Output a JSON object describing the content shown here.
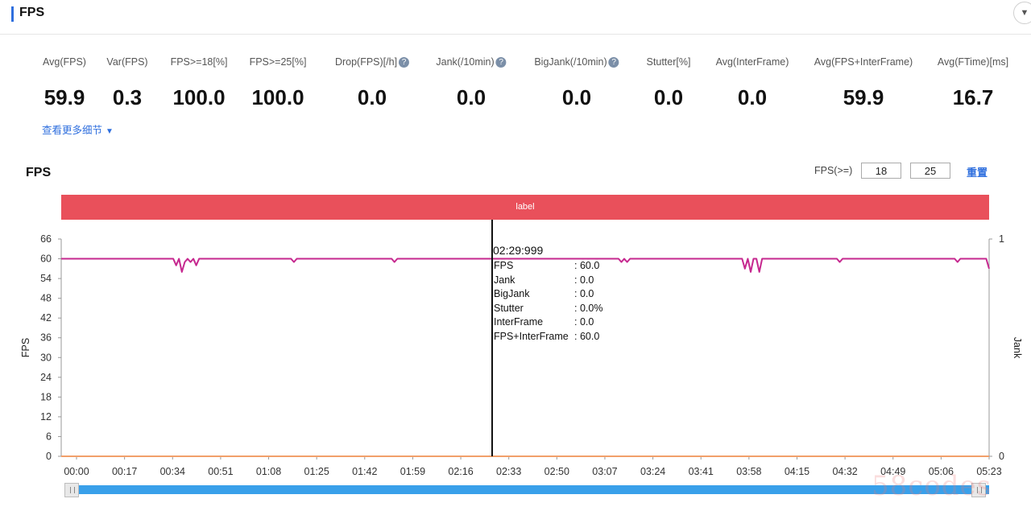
{
  "header": {
    "title": "FPS"
  },
  "summary": {
    "metrics": [
      {
        "label": "Avg(FPS)",
        "value": "59.9",
        "help": false
      },
      {
        "label": "Var(FPS)",
        "value": "0.3",
        "help": false
      },
      {
        "label": "FPS>=18[%]",
        "value": "100.0",
        "help": false
      },
      {
        "label": "FPS>=25[%]",
        "value": "100.0",
        "help": false
      },
      {
        "label": "Drop(FPS)[/h]",
        "value": "0.0",
        "help": true
      },
      {
        "label": "Jank(/10min)",
        "value": "0.0",
        "help": true
      },
      {
        "label": "BigJank(/10min)",
        "value": "0.0",
        "help": true
      },
      {
        "label": "Stutter[%]",
        "value": "0.0",
        "help": false
      },
      {
        "label": "Avg(InterFrame)",
        "value": "0.0",
        "help": false
      },
      {
        "label": "Avg(FPS+InterFrame)",
        "value": "59.9",
        "help": false
      },
      {
        "label": "Avg(FTime)[ms]",
        "value": "16.7",
        "help": false
      }
    ],
    "more_link": "查看更多细节",
    "help_icon": "question-circle-icon"
  },
  "chart_controls": {
    "title": "FPS",
    "threshold_label": "FPS(>=)",
    "threshold_1": "18",
    "threshold_2": "25",
    "reset_label": "重置"
  },
  "scene_band": {
    "label": "label",
    "color": "#e9505b"
  },
  "tooltip": {
    "time": "02:29:999",
    "rows": [
      {
        "name": "FPS",
        "value": ": 60.0"
      },
      {
        "name": "Jank",
        "value": ": 0.0"
      },
      {
        "name": "BigJank",
        "value": ": 0.0"
      },
      {
        "name": "Stutter",
        "value": ": 0.0%"
      },
      {
        "name": "InterFrame",
        "value": ": 0.0"
      },
      {
        "name": "FPS+InterFrame",
        "value": ": 60.0"
      }
    ]
  },
  "watermark": "58codes",
  "colors": {
    "fps_line": "#c6288f",
    "jank_line": "#f2a06a",
    "slider": "#39a0ea",
    "accent": "#2f6fde"
  },
  "chart_data": {
    "type": "line",
    "x_unit": "seconds",
    "xlim": [
      0,
      323
    ],
    "ylim": [
      0,
      66
    ],
    "y2lim": [
      0,
      1
    ],
    "ylabel": "FPS",
    "y2label": "Jank",
    "x_tick_labels": [
      "00:00",
      "00:17",
      "00:34",
      "00:51",
      "01:08",
      "01:25",
      "01:42",
      "01:59",
      "02:16",
      "02:33",
      "02:50",
      "03:07",
      "03:24",
      "03:41",
      "03:58",
      "04:15",
      "04:32",
      "04:49",
      "05:06",
      "05:23"
    ],
    "y_ticks": [
      0,
      6,
      12,
      18,
      24,
      30,
      36,
      42,
      48,
      54,
      60,
      66
    ],
    "y2_ticks": [
      0,
      1
    ],
    "cursor_x": 150,
    "series": [
      {
        "name": "FPS",
        "axis": "left",
        "points": [
          [
            0,
            60
          ],
          [
            39,
            60
          ],
          [
            40,
            58
          ],
          [
            41,
            60
          ],
          [
            42,
            56
          ],
          [
            43,
            59
          ],
          [
            44,
            60
          ],
          [
            45,
            59
          ],
          [
            46,
            60
          ],
          [
            47,
            58
          ],
          [
            48,
            60
          ],
          [
            80,
            60
          ],
          [
            81,
            59
          ],
          [
            82,
            60
          ],
          [
            115,
            60
          ],
          [
            116,
            59
          ],
          [
            117,
            60
          ],
          [
            194,
            60
          ],
          [
            195,
            59
          ],
          [
            196,
            60
          ],
          [
            197,
            59
          ],
          [
            198,
            60
          ],
          [
            237,
            60
          ],
          [
            238,
            57
          ],
          [
            239,
            60
          ],
          [
            240,
            56
          ],
          [
            241,
            60
          ],
          [
            242,
            60
          ],
          [
            243,
            56
          ],
          [
            244,
            60
          ],
          [
            270,
            60
          ],
          [
            271,
            59
          ],
          [
            272,
            60
          ],
          [
            311,
            60
          ],
          [
            312,
            59
          ],
          [
            313,
            60
          ],
          [
            322,
            60
          ],
          [
            323,
            57
          ]
        ]
      },
      {
        "name": "Jank",
        "axis": "right",
        "points": [
          [
            0,
            0
          ],
          [
            323,
            0
          ]
        ]
      }
    ]
  }
}
